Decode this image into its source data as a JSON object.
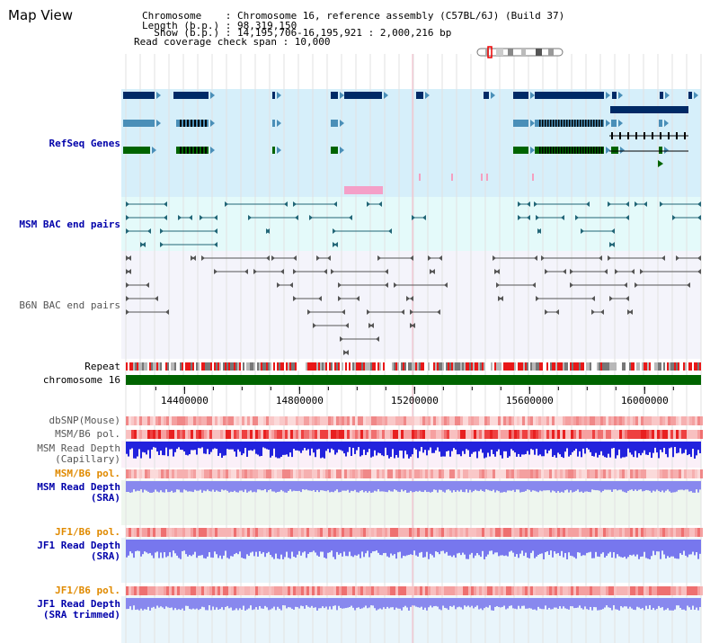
{
  "title": "Map View",
  "header": {
    "lines": [
      "Chromosome    : Chromosome 16, reference assembly (C57BL/6J) (Build 37)",
      "Length (b.p.) : 98,319,150",
      "  Show (b.p.) : 14,195,706-16,195,921 : 2,000,216 bp",
      "Read coverage check span : 10,000"
    ]
  },
  "tracks": {
    "refseq": "RefSeq Genes",
    "msm_bac": "MSM BAC end pairs",
    "b6n_bac": "B6N BAC end pairs",
    "repeat": "Repeat",
    "chromosome": "chromosome 16",
    "dbsnp": "dbSNP(Mouse)",
    "msm_b6_pol_1": "MSM/B6 pol.",
    "msm_depth_cap_1": "MSM Read Depth",
    "msm_depth_cap_2": "(Capillary)",
    "msm_b6_pol_2": "MSM/B6 pol.",
    "msm_depth_sra_1": "MSM Read Depth",
    "msm_depth_sra_2": "(SRA)",
    "jf1_b6_pol_1": "JF1/B6 pol.",
    "jf1_depth_sra_1": "JF1 Read Depth",
    "jf1_depth_sra_2": "(SRA)",
    "jf1_b6_pol_2": "JF1/B6 pol.",
    "jf1_depth_trim_1": "JF1 Read Depth",
    "jf1_depth_trim_2": "(SRA trimmed)"
  },
  "axis": {
    "range": [
      14195706,
      16195921
    ],
    "ticks": [
      "14400000",
      "14800000",
      "15200000",
      "15600000",
      "16000000"
    ],
    "tick_values": [
      14400000,
      14800000,
      15200000,
      15600000,
      16000000
    ]
  },
  "colors": {
    "refseq_bg": "#d6effa",
    "msm_bg": "#e4fafa",
    "b6n_bg": "#f4f4fb",
    "gene_dark": "#002a66",
    "gene_mid": "#4a8fb8",
    "gene_green": "#006400",
    "bac_msm": "#226677",
    "bac_b6n": "#555555",
    "chrom": "#006400",
    "depth_blue": "#2222dd",
    "depth_light": "#7777ee",
    "pol_red": "#ee2222"
  }
}
